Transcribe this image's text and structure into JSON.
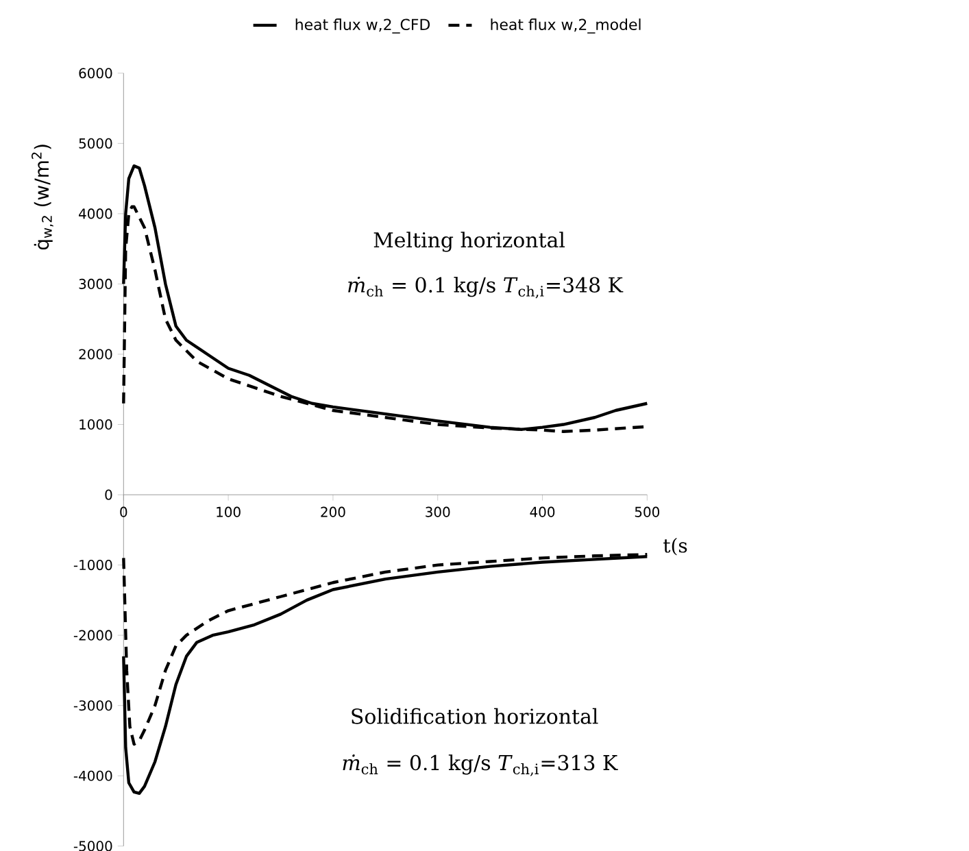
{
  "chart_data": {
    "type": "line",
    "xlabel": "t(s",
    "ylabel": "q̇$_{w,2}$ (w/m$^{2}$)",
    "xlim": [
      0,
      500
    ],
    "xticks": [
      0,
      100,
      200,
      300,
      400,
      500
    ],
    "ylim": [
      -5000,
      6000
    ],
    "yticks": [
      -5000,
      -4000,
      -3000,
      -2000,
      -1000,
      0,
      1000,
      2000,
      3000,
      4000,
      5000,
      6000
    ],
    "legend": "top",
    "grid": false,
    "annotations": [
      "Melting horizontal",
      "*ṁ*$_{ch}$ = 0.1 kg/s   *T*$_{ch,i}$=348 K",
      "Solidification horizontal",
      "*ṁ*$_{ch}$ = 0.1 kg/s   *T*$_{ch,i}$=313 K"
    ],
    "series": [
      {
        "name": "heat flux w,2_CFD",
        "color": "#000000",
        "line_style": "solid",
        "x": [
          0,
          2,
          5,
          10,
          15,
          20,
          30,
          40,
          50,
          60,
          80,
          100,
          120,
          140,
          160,
          180,
          200,
          250,
          300,
          350,
          380,
          400,
          420,
          450,
          470,
          500
        ],
        "values": [
          3000,
          4000,
          4500,
          4680,
          4650,
          4400,
          3800,
          3000,
          2400,
          2200,
          2000,
          1800,
          1700,
          1550,
          1400,
          1300,
          1250,
          1150,
          1050,
          960,
          930,
          960,
          1000,
          1100,
          1200,
          1300
        ]
      },
      {
        "name": "heat flux w,2_model",
        "color": "#000000",
        "line_style": "dashed",
        "x": [
          0,
          2,
          5,
          8,
          10,
          20,
          30,
          40,
          50,
          70,
          100,
          120,
          150,
          200,
          250,
          300,
          350,
          400,
          420,
          450,
          480,
          500
        ],
        "values": [
          1300,
          3500,
          4000,
          4100,
          4100,
          3800,
          3200,
          2500,
          2200,
          1900,
          1650,
          1550,
          1400,
          1200,
          1100,
          1000,
          950,
          920,
          900,
          920,
          950,
          970
        ]
      },
      {
        "color": "#000000",
        "line_style": "solid",
        "x": [
          0,
          2,
          5,
          10,
          15,
          20,
          30,
          40,
          50,
          60,
          70,
          85,
          100,
          125,
          150,
          175,
          200,
          250,
          300,
          350,
          400,
          450,
          500
        ],
        "values": [
          -2300,
          -3600,
          -4100,
          -4230,
          -4250,
          -4150,
          -3800,
          -3300,
          -2700,
          -2300,
          -2100,
          -2000,
          -1950,
          -1850,
          -1700,
          -1500,
          -1350,
          -1200,
          -1100,
          -1020,
          -960,
          -920,
          -880
        ]
      },
      {
        "color": "#000000",
        "line_style": "dashed",
        "x": [
          0,
          3,
          6,
          10,
          15,
          20,
          30,
          40,
          50,
          60,
          80,
          100,
          150,
          200,
          250,
          300,
          350,
          400,
          450,
          500
        ],
        "values": [
          -900,
          -2500,
          -3300,
          -3550,
          -3500,
          -3350,
          -3000,
          -2500,
          -2150,
          -2000,
          -1800,
          -1650,
          -1450,
          -1250,
          -1100,
          -1000,
          -950,
          -900,
          -870,
          -850
        ]
      }
    ]
  }
}
